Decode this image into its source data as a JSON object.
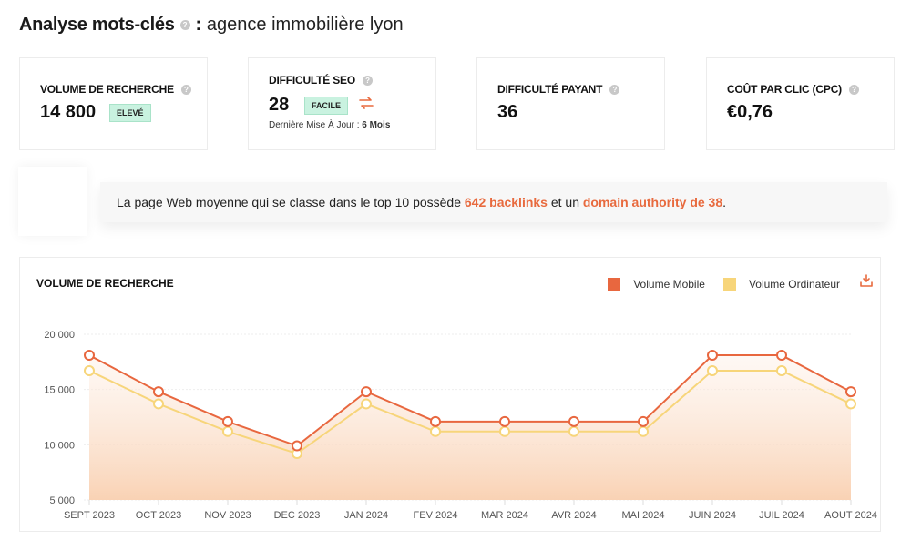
{
  "header": {
    "title": "Analyse mots-clés",
    "separator": ":",
    "keyword": "agence immobilière lyon",
    "help_icon": "help-circle-icon"
  },
  "cards": [
    {
      "label": "VOLUME DE RECHERCHE",
      "value": "14 800",
      "badge": "ELEVÉ"
    },
    {
      "label": "DIFFICULTÉ SEO",
      "value": "28",
      "badge": "FACILE",
      "update_label": "Dernière Mise À Jour :",
      "update_value": "6 Mois",
      "icon": "swap-arrows-icon"
    },
    {
      "label": "DIFFICULTÉ PAYANT",
      "value": "36"
    },
    {
      "label": "COÛT PAR CLIC (CPC)",
      "value": "€0,76"
    }
  ],
  "info": {
    "text_before": "La page Web moyenne qui se classe dans le top 10 possède ",
    "backlinks": "642 backlinks",
    "text_middle": " et un ",
    "domain_authority": "domain authority de 38",
    "text_after": "."
  },
  "colors": {
    "accent": "#e86a3e",
    "mobile": "#e8673f",
    "desktop": "#f7d57a",
    "badge_bg": "#c9f2e0"
  },
  "chart": {
    "title": "VOLUME DE RECHERCHE",
    "legend_mobile": "Volume Mobile",
    "legend_desktop": "Volume Ordinateur",
    "download_icon": "download-icon"
  },
  "chart_data": {
    "type": "line",
    "title": "VOLUME DE RECHERCHE",
    "xlabel": "",
    "ylabel": "",
    "categories": [
      "SEPT 2023",
      "OCT 2023",
      "NOV 2023",
      "DEC 2023",
      "JAN 2024",
      "FEV 2024",
      "MAR 2024",
      "AVR 2024",
      "MAI 2024",
      "JUIN 2024",
      "JUIL 2024",
      "AOUT 2024"
    ],
    "series": [
      {
        "name": "Volume Mobile",
        "color": "#e8673f",
        "values": [
          18100,
          14800,
          12100,
          9900,
          14800,
          12100,
          12100,
          12100,
          12100,
          18100,
          18100,
          14800
        ]
      },
      {
        "name": "Volume Ordinateur",
        "color": "#f7d57a",
        "values": [
          16700,
          13700,
          11200,
          9200,
          13700,
          11200,
          11200,
          11200,
          11200,
          16700,
          16700,
          13700
        ]
      }
    ],
    "ylim": [
      5000,
      20000
    ],
    "yticks": [
      "5 000",
      "10 000",
      "15 000",
      "20 000"
    ],
    "grid": true,
    "legend_position": "top-right",
    "area_fill": true
  }
}
